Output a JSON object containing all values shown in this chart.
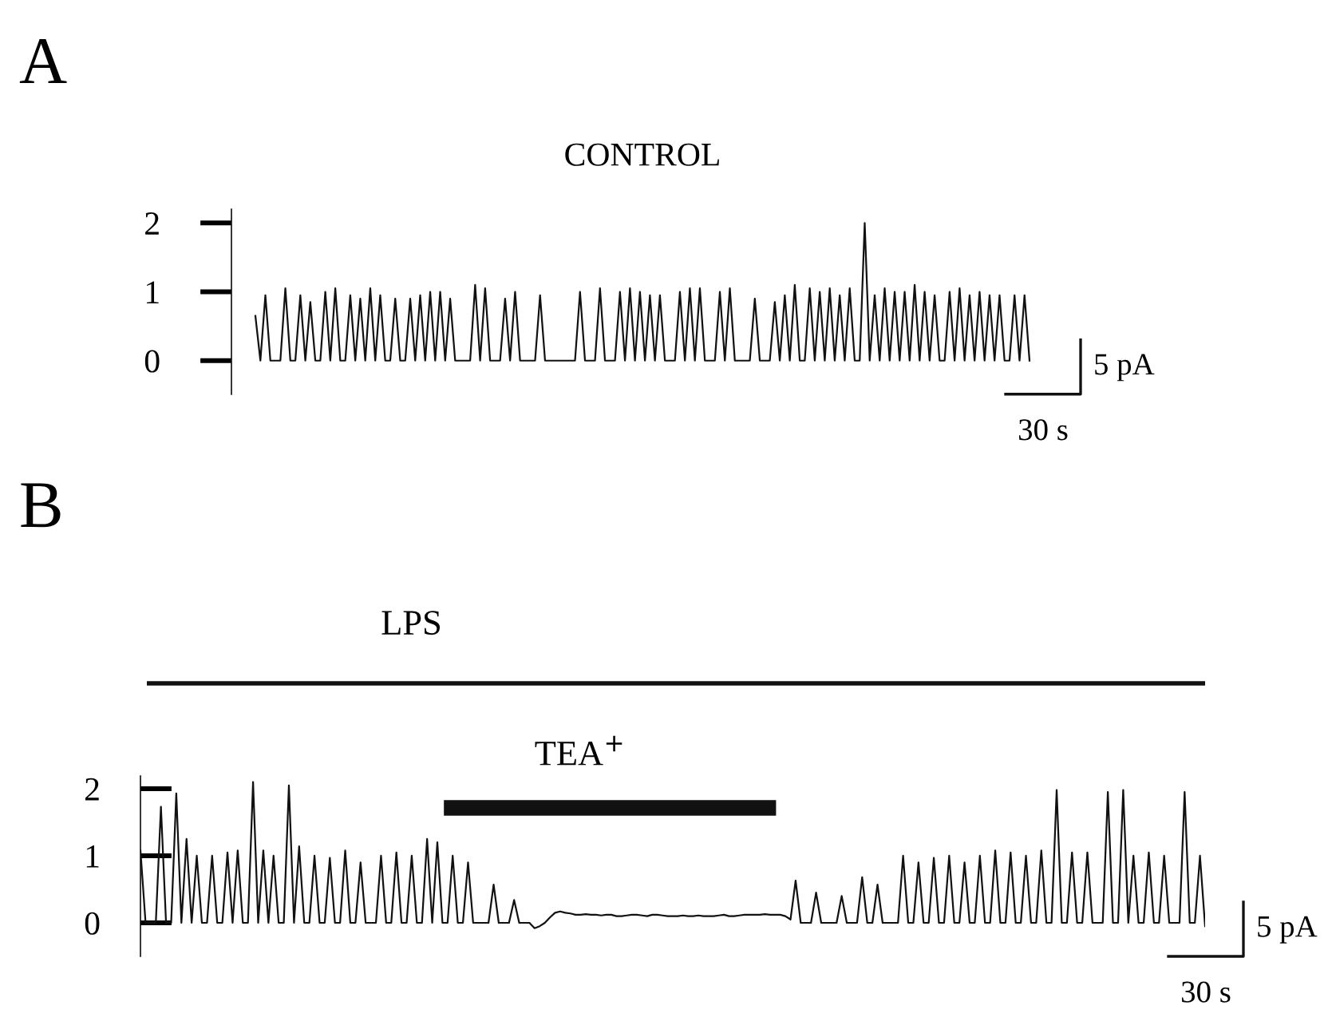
{
  "chart_data": [
    {
      "type": "line",
      "title": "A",
      "subtitle": "CONTROL",
      "ylim": [
        -0.49,
        2.2
      ],
      "yticks": [
        0,
        1,
        2
      ],
      "tick_labels": "y",
      "marker": "none",
      "line_style": "solid",
      "annotations": [
        "5 pA",
        "30 s"
      ],
      "categories": [
        null,
        null,
        null,
        null,
        null,
        null,
        null,
        null,
        null,
        null,
        null,
        null,
        null,
        null,
        null,
        null,
        null,
        null,
        null,
        null,
        null,
        null,
        null,
        null,
        null,
        null,
        null,
        null,
        null,
        null,
        null,
        null,
        null,
        null,
        null,
        null,
        null,
        null,
        null,
        null,
        null,
        null,
        null,
        null,
        null,
        null,
        null,
        null,
        null,
        null,
        null,
        null,
        null,
        null,
        null,
        null,
        null,
        null,
        null,
        null,
        null,
        null,
        null,
        null,
        null,
        null,
        null,
        null,
        null,
        null,
        null,
        null,
        null,
        null,
        null,
        null,
        null,
        null,
        null,
        null,
        null,
        null,
        null,
        null,
        null,
        null,
        null,
        null,
        null,
        null,
        null,
        null,
        null,
        null,
        null,
        null,
        null,
        null,
        null,
        null,
        null,
        null,
        null,
        null,
        null,
        null,
        null,
        null,
        null,
        null,
        null,
        null,
        null,
        null,
        null,
        null,
        null,
        null,
        null,
        null,
        null,
        null,
        null,
        null,
        null,
        null,
        null,
        null,
        null,
        null,
        null,
        null,
        null,
        null,
        null,
        null,
        null,
        null,
        null,
        null,
        null,
        null,
        null,
        null,
        null,
        null,
        null,
        null,
        null,
        null,
        null,
        null,
        null,
        null,
        null,
        null
      ],
      "series": [
        {
          "color": "#111111",
          "values": [
            0.65,
            0,
            0.95,
            0,
            0,
            0,
            1.05,
            0,
            0,
            0.95,
            0,
            0.85,
            0,
            0,
            1.0,
            0,
            1.05,
            0,
            0,
            0.95,
            0,
            0.9,
            0,
            1.05,
            0,
            0.95,
            0,
            0,
            0.9,
            0,
            0,
            0.9,
            0,
            0.95,
            0,
            1.0,
            0,
            1.0,
            0,
            0.9,
            0,
            0,
            0,
            0,
            1.1,
            0,
            1.05,
            0,
            0,
            0,
            0.9,
            0,
            1.0,
            0,
            0,
            0,
            0,
            0.95,
            0,
            0,
            0,
            0,
            0,
            0,
            0,
            1.0,
            0,
            0,
            0,
            1.05,
            0,
            0,
            0,
            1.0,
            0,
            1.05,
            0,
            1.0,
            0,
            0.95,
            0,
            0.95,
            0,
            0,
            0,
            1.0,
            0,
            1.05,
            0,
            1.05,
            0,
            0,
            0,
            1.0,
            0,
            1.05,
            0,
            0,
            0,
            0,
            0.9,
            0,
            0,
            0,
            0.85,
            0,
            0.95,
            0,
            1.1,
            0,
            0,
            1.05,
            0,
            1.0,
            0,
            1.05,
            0,
            0.95,
            0,
            1.05,
            0,
            0,
            2.0,
            0,
            0.95,
            0,
            1.05,
            0,
            1.0,
            0,
            1.0,
            0,
            1.1,
            0,
            1.0,
            0,
            0.95,
            0,
            0,
            1.0,
            0,
            1.05,
            0,
            0.95,
            0,
            1.0,
            0,
            0.95,
            0,
            0.95,
            0,
            0,
            0.95,
            0,
            0.95,
            0
          ]
        }
      ]
    },
    {
      "type": "line",
      "title": "B",
      "ylim": [
        -0.5,
        2.19
      ],
      "yticks": [
        0,
        1,
        2
      ],
      "tick_labels": "y",
      "marker": "none",
      "line_style": "solid",
      "annotations": [
        "LPS",
        "TEA$^{+}$",
        "5 pA",
        "30 s"
      ],
      "categories": [
        null,
        null,
        null,
        null,
        null,
        null,
        null,
        null,
        null,
        null,
        null,
        null,
        null,
        null,
        null,
        null,
        null,
        null,
        null,
        null,
        null,
        null,
        null,
        null,
        null,
        null,
        null,
        null,
        null,
        null,
        null,
        null,
        null,
        null,
        null,
        null,
        null,
        null,
        null,
        null,
        null,
        null,
        null,
        null,
        null,
        null,
        null,
        null,
        null,
        null,
        null,
        null,
        null,
        null,
        null,
        null,
        null,
        null,
        null,
        null,
        null,
        null,
        null,
        null,
        null,
        null,
        null,
        null,
        null,
        null,
        null,
        null,
        null,
        null,
        null,
        null,
        null,
        null,
        null,
        null,
        null,
        null,
        null,
        null,
        null,
        null,
        null,
        null,
        null,
        null,
        null,
        null,
        null,
        null,
        null,
        null,
        null,
        null,
        null,
        null,
        null,
        null,
        null,
        null,
        null,
        null,
        null,
        null,
        null,
        null,
        null,
        null,
        null,
        null,
        null,
        null,
        null,
        null,
        null,
        null,
        null,
        null,
        null,
        null,
        null,
        null,
        null,
        null,
        null,
        null,
        null,
        null,
        null,
        null,
        null,
        null,
        null,
        null,
        null,
        null,
        null,
        null,
        null,
        null,
        null,
        null,
        null,
        null,
        null,
        null,
        null,
        null,
        null,
        null,
        null,
        null,
        null,
        null,
        null,
        null,
        null,
        null,
        null,
        null,
        null,
        null,
        null,
        null,
        null,
        null,
        null,
        null,
        null,
        null,
        null,
        null,
        null,
        null,
        null,
        null,
        null,
        null,
        null,
        null,
        null,
        null,
        null,
        null,
        null,
        null,
        null,
        null,
        null,
        null,
        null,
        null,
        null,
        null,
        null,
        null,
        null,
        null,
        null,
        null,
        null,
        null,
        null,
        null,
        null
      ],
      "series": [
        {
          "color": "#111111",
          "values": [
            1.08,
            0,
            0,
            0,
            1.73,
            0,
            0,
            1.93,
            0,
            1.25,
            0,
            1.0,
            0,
            0,
            1.0,
            0,
            0,
            1.05,
            0,
            1.08,
            0,
            0,
            2.1,
            0,
            1.08,
            0,
            1.0,
            0,
            0,
            2.05,
            0,
            1.14,
            0,
            0,
            1.0,
            0,
            0,
            0.97,
            0,
            0,
            1.08,
            0,
            0,
            0.9,
            0,
            0,
            0,
            1.0,
            0,
            0,
            1.05,
            0,
            0,
            1.0,
            0,
            0,
            1.25,
            0,
            1.2,
            0,
            0,
            1.0,
            0,
            0,
            0.9,
            0,
            0,
            0,
            0,
            0.57,
            0,
            0,
            0,
            0.34,
            0,
            0,
            0,
            -0.08,
            -0.05,
            0,
            0.08,
            0.15,
            0.17,
            0.15,
            0.14,
            0.12,
            0.12,
            0.13,
            0.12,
            0.12,
            0.11,
            0.12,
            0.12,
            0.1,
            0.1,
            0.11,
            0.12,
            0.12,
            0.11,
            0.1,
            0.12,
            0.12,
            0.11,
            0.1,
            0.1,
            0.1,
            0.11,
            0.1,
            0.1,
            0.11,
            0.1,
            0.1,
            0.1,
            0.11,
            0.12,
            0.1,
            0.1,
            0.11,
            0.12,
            0.12,
            0.12,
            0.12,
            0.13,
            0.12,
            0.12,
            0.12,
            0.1,
            0.05,
            0.63,
            0,
            0,
            0,
            0.45,
            0,
            0,
            0,
            0,
            0.4,
            0,
            0,
            0,
            0.68,
            0,
            0,
            0.57,
            0,
            0,
            0,
            0,
            1.0,
            0,
            0,
            0.9,
            0,
            0,
            0.97,
            0,
            0,
            1.0,
            0,
            0,
            0.9,
            0,
            0,
            1.0,
            0,
            0,
            1.08,
            0,
            0,
            1.05,
            0,
            0,
            1.0,
            0,
            0,
            1.08,
            0,
            0,
            1.98,
            0,
            0,
            1.05,
            0,
            0,
            1.05,
            0,
            0,
            0,
            1.95,
            0,
            0,
            1.98,
            0,
            1.0,
            0,
            0,
            1.05,
            0,
            0,
            1.0,
            0,
            0,
            0,
            1.95,
            0,
            0,
            1.0,
            -0.05
          ]
        }
      ]
    }
  ]
}
